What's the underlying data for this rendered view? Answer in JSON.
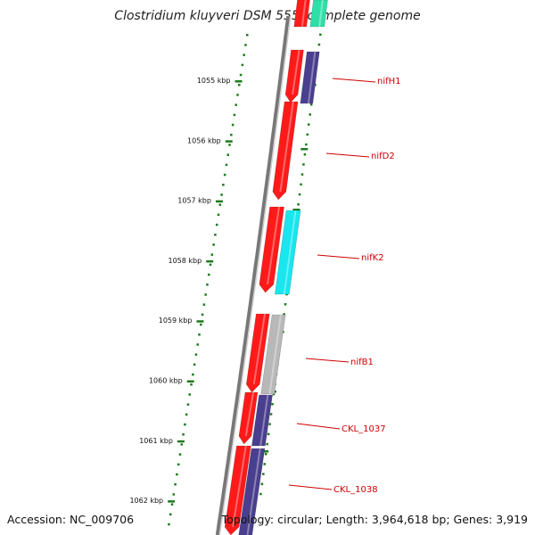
{
  "title": "Clostridium kluyveri DSM 555, complete genome",
  "footer": {
    "accession": "Accession: NC_009706",
    "summary": "Topology: circular; Length: 3,964,618 bp; Genes: 3,919"
  },
  "colors": {
    "backbone": "#777777",
    "ticks": "#1e7a1e",
    "label": "#cc0000",
    "cds_red": "#ff1a1a",
    "purple": "#4a3f8e",
    "cyan": "#19e6ee",
    "gray": "#b8b8b8",
    "teal": "#2ee0a8"
  },
  "scale": {
    "unit": "kbp",
    "ticks": [
      {
        "kbp": 1055,
        "label": "1055 kbp"
      },
      {
        "kbp": 1056,
        "label": "1056 kbp"
      },
      {
        "kbp": 1057,
        "label": "1057 kbp"
      },
      {
        "kbp": 1058,
        "label": "1058 kbp"
      },
      {
        "kbp": 1059,
        "label": "1059 kbp"
      },
      {
        "kbp": 1060,
        "label": "1060 kbp"
      },
      {
        "kbp": 1061,
        "label": "1061 kbp"
      },
      {
        "kbp": 1062,
        "label": "1062 kbp"
      }
    ]
  },
  "genes": [
    {
      "name": "nifH1"
    },
    {
      "name": "nifD2"
    },
    {
      "name": "nifK2"
    },
    {
      "name": "nifB1"
    },
    {
      "name": "CKL_1037"
    },
    {
      "name": "CKL_1038"
    }
  ]
}
